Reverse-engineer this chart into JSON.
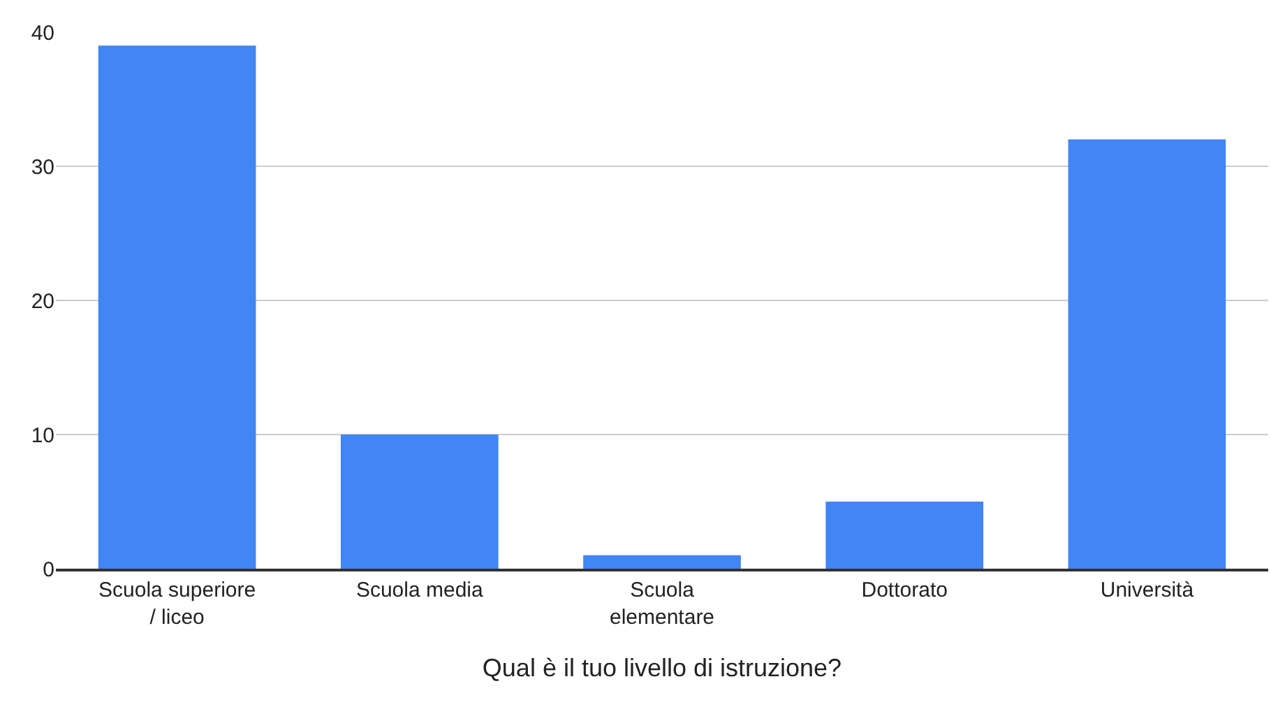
{
  "chart_data": {
    "type": "bar",
    "xlabel": "Qual è il tuo livello di istruzione?",
    "categories": [
      "Scuola superiore / liceo",
      "Scuola media",
      "Scuola elementare",
      "Dottorato",
      "Università"
    ],
    "values": [
      39,
      10,
      1,
      5,
      32
    ],
    "color": "#4285f4",
    "ylim": [
      0,
      40
    ],
    "yticks": [
      0,
      10,
      20,
      30,
      40
    ],
    "grid": "y"
  }
}
